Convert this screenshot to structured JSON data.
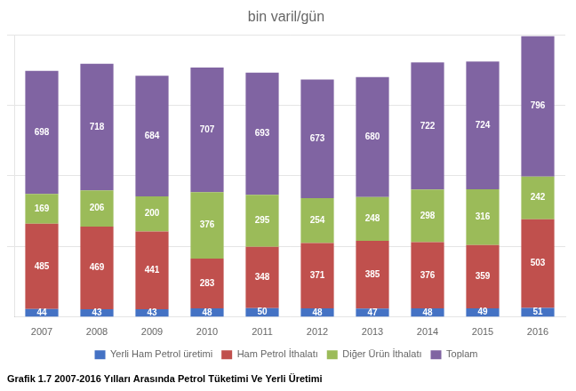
{
  "chart_data": {
    "type": "bar",
    "stacked": true,
    "title": "bin varil/gün",
    "caption": "Grafik 1.7 2007-2016 Yılları Arasında Petrol Tüketimi Ve Yerli Üretimi",
    "categories": [
      "2007",
      "2008",
      "2009",
      "2010",
      "2011",
      "2012",
      "2013",
      "2014",
      "2015",
      "2016"
    ],
    "series": [
      {
        "name": "Yerli Ham Petrol üretimi",
        "color": "#4472C4",
        "values": [
          44,
          43,
          43,
          48,
          50,
          48,
          47,
          48,
          49,
          51
        ]
      },
      {
        "name": "Ham Petrol İthalatı",
        "color": "#C0504D",
        "values": [
          485,
          469,
          441,
          283,
          348,
          371,
          385,
          376,
          359,
          503
        ]
      },
      {
        "name": "Diğer Ürün İthalatı",
        "color": "#9BBB59",
        "values": [
          169,
          206,
          200,
          376,
          295,
          254,
          248,
          298,
          316,
          242
        ]
      },
      {
        "name": "Toplam",
        "color": "#8064A2",
        "values": [
          698,
          718,
          684,
          707,
          693,
          673,
          680,
          722,
          724,
          796
        ]
      }
    ],
    "ylim": [
      0,
      1600
    ],
    "yticks": [
      400,
      800,
      1200,
      1600
    ],
    "grid": true,
    "tick_labels": "x",
    "legend": "bottom",
    "data_labels": true
  }
}
